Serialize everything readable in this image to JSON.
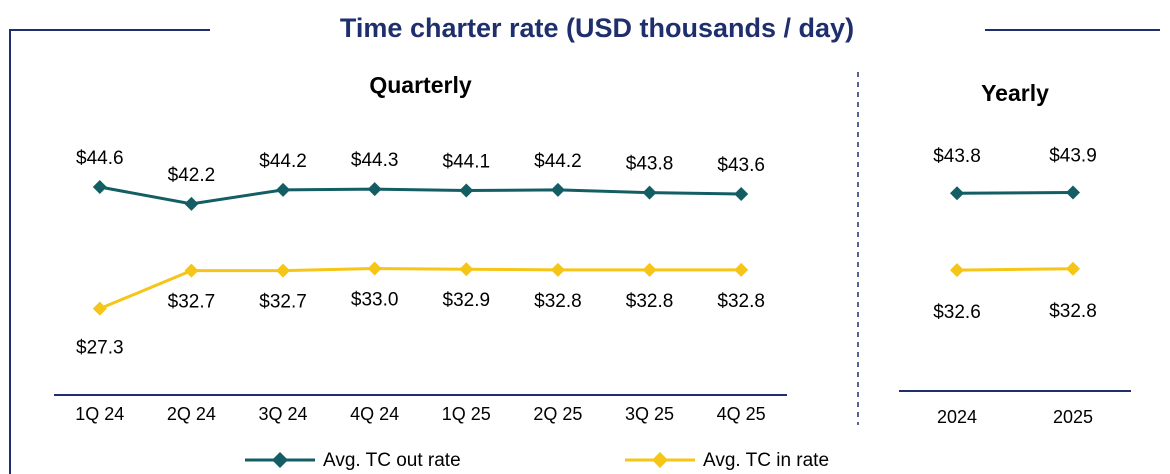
{
  "title": "Time charter rate (USD thousands / day)",
  "chart_data": [
    {
      "type": "line",
      "subtitle": "Quarterly",
      "categories": [
        "1Q 24",
        "2Q 24",
        "3Q 24",
        "4Q 24",
        "1Q 25",
        "2Q 25",
        "3Q 25",
        "4Q 25"
      ],
      "ylim": [
        15,
        53
      ],
      "series": [
        {
          "name": "Avg. TC out rate",
          "color": "#135e64",
          "values": [
            44.6,
            42.2,
            44.2,
            44.3,
            44.1,
            44.2,
            43.8,
            43.6
          ],
          "value_labels": [
            "$44.6",
            "$42.2",
            "$44.2",
            "$44.3",
            "$44.1",
            "$44.2",
            "$43.8",
            "$43.6"
          ]
        },
        {
          "name": "Avg. TC in rate",
          "color": "#f5c518",
          "values": [
            27.3,
            32.7,
            32.7,
            33.0,
            32.9,
            32.8,
            32.8,
            32.8
          ],
          "value_labels": [
            "$27.3",
            "$32.7",
            "$32.7",
            "$33.0",
            "$32.9",
            "$32.8",
            "$32.8",
            "$32.8"
          ]
        }
      ]
    },
    {
      "type": "line",
      "subtitle": "Yearly",
      "categories": [
        "2024",
        "2025"
      ],
      "ylim": [
        15,
        53
      ],
      "series": [
        {
          "name": "Avg. TC out rate",
          "color": "#135e64",
          "values": [
            43.8,
            43.9
          ],
          "value_labels": [
            "$43.8",
            "$43.9"
          ]
        },
        {
          "name": "Avg. TC in rate",
          "color": "#f5c518",
          "values": [
            32.6,
            32.8
          ],
          "value_labels": [
            "$32.6",
            "$32.8"
          ]
        }
      ]
    }
  ]
}
